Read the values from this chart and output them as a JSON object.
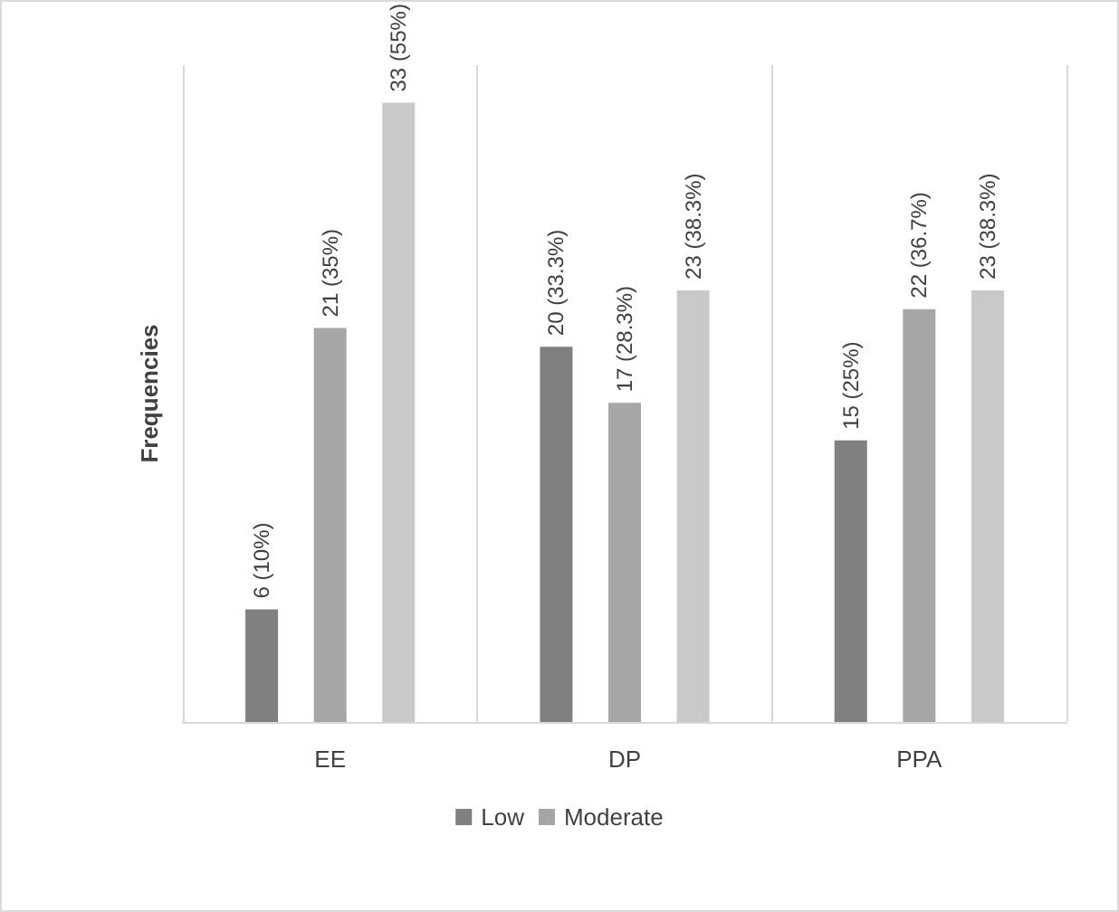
{
  "chart_data": {
    "type": "bar",
    "ylabel": "Frequencies",
    "categories": [
      "EE",
      "DP",
      "PPA"
    ],
    "series": [
      {
        "name": "Low",
        "color": "#808080",
        "values": [
          6,
          20,
          15
        ],
        "value_labels": [
          "6 (10%)",
          "20 (33.3%)",
          "15 (25%)"
        ]
      },
      {
        "name": "Moderate",
        "color": "#a6a6a6",
        "values": [
          21,
          17,
          22
        ],
        "value_labels": [
          "21 (35%)",
          "17 (28.3%)",
          "22 (36.7%)"
        ]
      },
      {
        "color": "#c9c9c9",
        "values": [
          33,
          23,
          23
        ],
        "value_labels": [
          "33 (55%)",
          "23 (38.3%)",
          "23 (38.3%)"
        ]
      }
    ],
    "tick_labels": "x",
    "grid": "x",
    "legend": "bottom"
  }
}
